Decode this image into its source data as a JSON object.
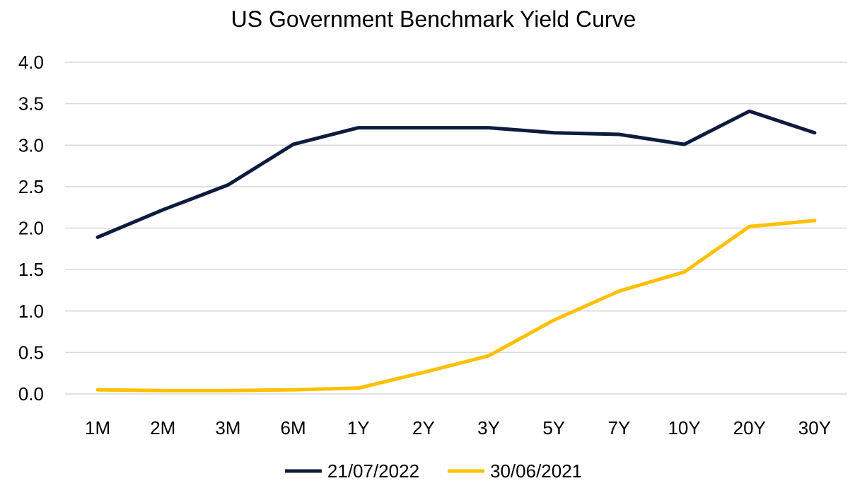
{
  "chart_data": {
    "type": "line",
    "title": "US Government Benchmark Yield Curve",
    "xlabel": "",
    "ylabel": "",
    "categories": [
      "1M",
      "2M",
      "3M",
      "6M",
      "1Y",
      "2Y",
      "3Y",
      "5Y",
      "7Y",
      "10Y",
      "20Y",
      "30Y"
    ],
    "ylim": [
      0,
      4
    ],
    "yticks": [
      "0.0",
      "0.5",
      "1.0",
      "1.5",
      "2.0",
      "2.5",
      "3.0",
      "3.5",
      "4.0"
    ],
    "grid": true,
    "legend_position": "bottom",
    "series": [
      {
        "name": "21/07/2022",
        "color": "#0d1b3e",
        "values": [
          1.89,
          2.22,
          2.52,
          3.01,
          3.21,
          3.21,
          3.21,
          3.15,
          3.13,
          3.01,
          3.41,
          3.15
        ]
      },
      {
        "name": "30/06/2021",
        "color": "#ffc000",
        "values": [
          0.05,
          0.04,
          0.04,
          0.05,
          0.07,
          0.26,
          0.46,
          0.89,
          1.24,
          1.47,
          2.02,
          2.09
        ]
      }
    ]
  }
}
